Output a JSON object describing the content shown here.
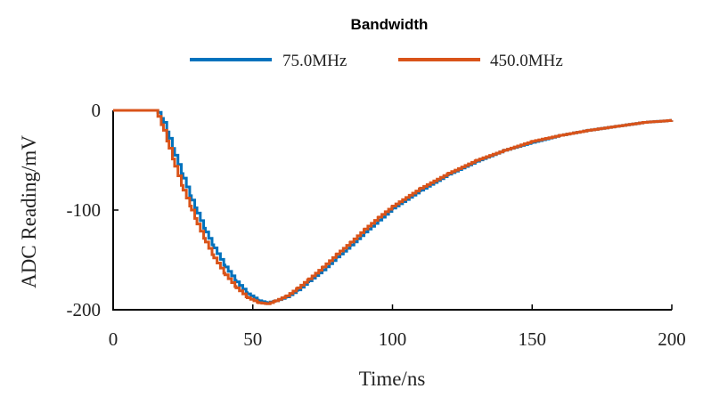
{
  "chart_data": {
    "type": "line",
    "legend_title": "Bandwidth",
    "legend_position": "top",
    "xlabel": "Time/ns",
    "ylabel": "ADC Reading/mV",
    "xlim": [
      0,
      200
    ],
    "ylim": [
      -200,
      0
    ],
    "xticks": [
      0,
      50,
      100,
      150,
      200
    ],
    "yticks": [
      0,
      -100,
      -200
    ],
    "grid": false,
    "series": [
      {
        "name": "75.0MHz",
        "color": "#0072BD",
        "x": [
          0,
          15,
          16,
          18,
          20,
          22,
          25,
          28,
          30,
          33,
          36,
          40,
          44,
          48,
          52,
          55,
          58,
          62,
          66,
          70,
          75,
          80,
          85,
          90,
          95,
          100,
          110,
          120,
          130,
          140,
          150,
          160,
          170,
          180,
          190,
          200
        ],
        "y": [
          0,
          0,
          -2,
          -12,
          -28,
          -45,
          -68,
          -90,
          -103,
          -122,
          -138,
          -157,
          -172,
          -184,
          -191,
          -193,
          -191,
          -187,
          -180,
          -171,
          -160,
          -147,
          -135,
          -122,
          -110,
          -98,
          -80,
          -64,
          -51,
          -40,
          -32,
          -25,
          -20,
          -16,
          -12,
          -10
        ]
      },
      {
        "name": "450.0MHz",
        "color": "#D95319",
        "x": [
          0,
          15,
          16,
          18,
          20,
          22,
          25,
          28,
          30,
          33,
          36,
          40,
          44,
          48,
          52,
          55,
          58,
          62,
          66,
          70,
          75,
          80,
          85,
          90,
          95,
          100,
          110,
          120,
          130,
          140,
          150,
          160,
          170,
          180,
          190,
          200
        ],
        "y": [
          0,
          0,
          -6,
          -20,
          -38,
          -56,
          -80,
          -100,
          -114,
          -132,
          -148,
          -165,
          -178,
          -188,
          -193,
          -194,
          -191,
          -186,
          -178,
          -169,
          -157,
          -144,
          -132,
          -119,
          -107,
          -96,
          -78,
          -63,
          -50,
          -40,
          -31,
          -25,
          -20,
          -16,
          -12,
          -10
        ]
      }
    ]
  }
}
